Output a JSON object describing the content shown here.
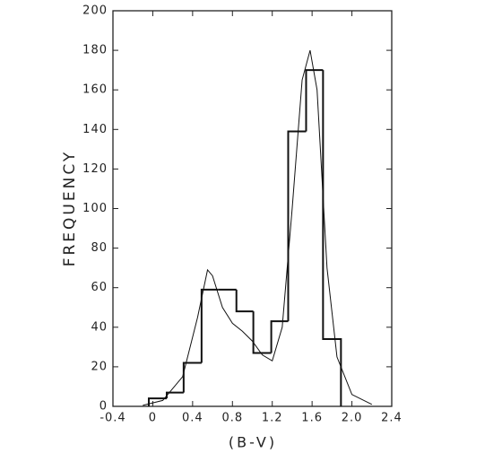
{
  "chart_data": {
    "type": "histogram",
    "x_label": "(B-V)",
    "y_label": "FREQUENCY",
    "bins": [
      -0.04,
      0.14,
      0.31,
      0.49,
      0.66,
      0.84,
      1.01,
      1.19,
      1.36,
      1.54,
      1.71,
      1.89
    ],
    "values": [
      4,
      7,
      22,
      59,
      59,
      48,
      27,
      43,
      139,
      170,
      34
    ],
    "color": "#111111",
    "curve": {
      "type": "line",
      "color": "#111111",
      "x": [
        -0.1,
        0.1,
        0.3,
        0.45,
        0.55,
        0.6,
        0.7,
        0.8,
        0.9,
        1.0,
        1.1,
        1.2,
        1.3,
        1.4,
        1.5,
        1.58,
        1.65,
        1.75,
        1.85,
        2.0,
        2.2
      ],
      "values": [
        0.5,
        3,
        15,
        45,
        69,
        66,
        50,
        42,
        38,
        33,
        26,
        23,
        40,
        100,
        165,
        180,
        160,
        70,
        25,
        6,
        1
      ]
    },
    "xlim": [
      -0.4,
      2.4
    ],
    "xticks": [
      -0.4,
      0,
      0.4,
      0.8,
      1.2,
      1.6,
      {
        "value": 2,
        "label": "2.0"
      },
      2.4
    ],
    "ylim": [
      0,
      200
    ],
    "yticks": [
      0,
      20,
      40,
      60,
      80,
      100,
      120,
      140,
      160,
      180,
      200
    ]
  }
}
